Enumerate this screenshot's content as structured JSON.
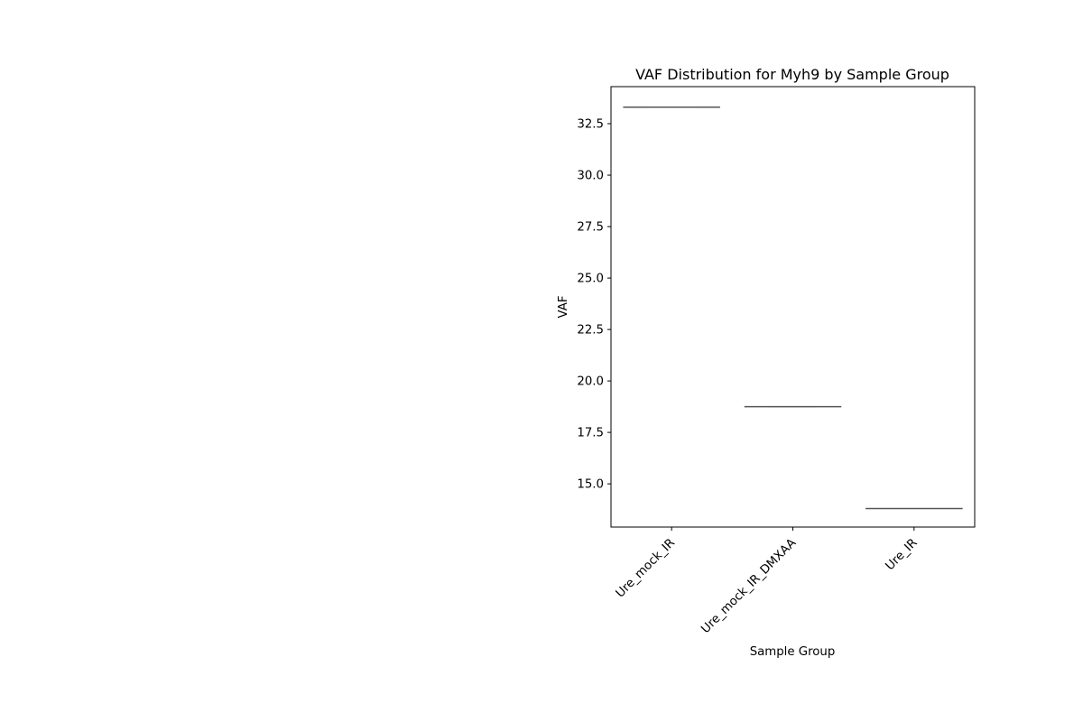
{
  "chart_data": {
    "type": "box",
    "title": "VAF Distribution for Myh9 by Sample Group",
    "xlabel": "Sample Group",
    "ylabel": "VAF",
    "categories": [
      "Ure_mock_IR",
      "Ure_mock_IR_DMXAA",
      "Ure_IR"
    ],
    "series": [
      {
        "values": [
          33.3,
          18.75,
          13.8
        ]
      }
    ],
    "yticks": [
      15.0,
      17.5,
      20.0,
      22.5,
      25.0,
      27.5,
      30.0,
      32.5
    ],
    "ytick_labels": [
      "15.0",
      "17.5",
      "20.0",
      "22.5",
      "25.0",
      "27.5",
      "30.0",
      "32.5"
    ],
    "ylim": [
      12.9,
      34.3
    ],
    "xtick_rotation": 45,
    "grid": false,
    "legend": "none",
    "colors": {
      "box_line": "#555555",
      "axes": "#000000",
      "background": "#ffffff"
    }
  }
}
